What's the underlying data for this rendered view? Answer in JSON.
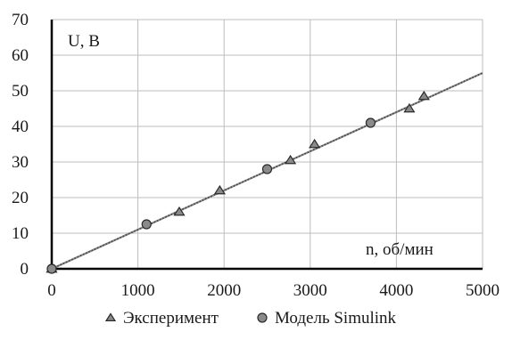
{
  "chart_data": {
    "type": "scatter",
    "xlabel": "n, об/мин",
    "ylabel": "U, В",
    "xlim": [
      0,
      5000
    ],
    "ylim": [
      0,
      70
    ],
    "xticks": [
      "0",
      "1000",
      "2000",
      "3000",
      "4000",
      "5000"
    ],
    "yticks": [
      "0",
      "10",
      "20",
      "30",
      "40",
      "50",
      "60",
      "70"
    ],
    "grid": true,
    "legend_position": "bottom",
    "series": [
      {
        "name": "Эксперимент",
        "marker": "triangle",
        "color": "#555555",
        "x": [
          0,
          1480,
          1950,
          2770,
          3050,
          4150,
          4320
        ],
        "y": [
          0,
          16,
          22,
          30.5,
          35,
          45,
          48.5
        ]
      },
      {
        "name": "Модель Simulink",
        "marker": "circle",
        "color": "#777777",
        "x": [
          0,
          1100,
          2500,
          3700
        ],
        "y": [
          0,
          12.5,
          28,
          41
        ]
      }
    ],
    "trendline": {
      "x": [
        0,
        5000
      ],
      "y": [
        0,
        55
      ],
      "style": "dotted",
      "color": "#444444"
    }
  }
}
